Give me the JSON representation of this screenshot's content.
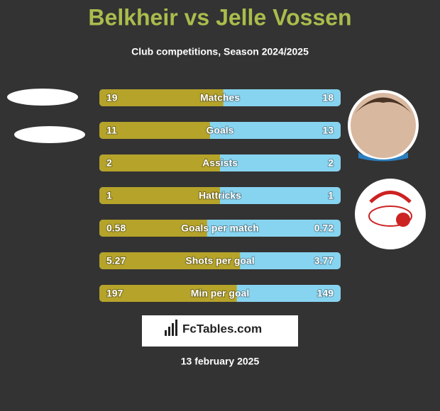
{
  "title": "Belkheir vs Jelle Vossen",
  "subtitle": "Club competitions, Season 2024/2025",
  "rows": [
    {
      "label": "Matches",
      "left": 19,
      "right": 18
    },
    {
      "label": "Goals",
      "left": 11,
      "right": 13
    },
    {
      "label": "Assists",
      "left": 2,
      "right": 2
    },
    {
      "label": "Hattricks",
      "left": 1,
      "right": 1
    },
    {
      "label": "Goals per match",
      "left": 0.58,
      "right": 0.72
    },
    {
      "label": "Shots per goal",
      "left": 5.27,
      "right": 3.77
    },
    {
      "label": "Min per goal",
      "left": 197,
      "right": 149
    }
  ],
  "brand": "FcTables.com",
  "date": "13 february 2025"
}
